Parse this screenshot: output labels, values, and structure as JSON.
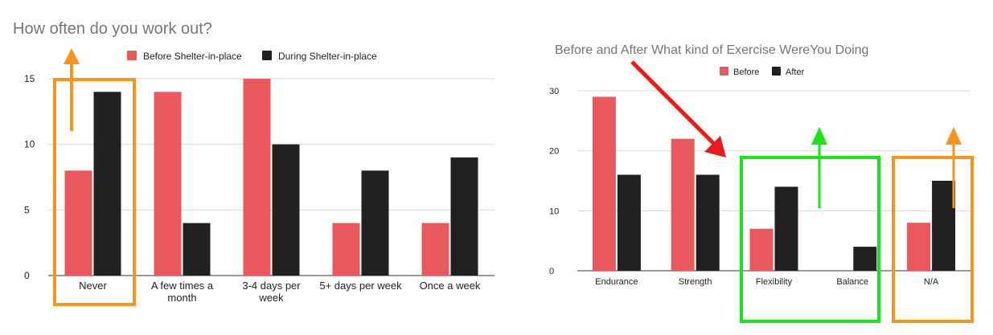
{
  "colors": {
    "before": "#e8585c",
    "after": "#212121",
    "grid": "#d9d9d9",
    "highlight_orange": "#f7941d",
    "highlight_green": "#19e619",
    "arrow_red": "#e81c1c"
  },
  "chart_data": [
    {
      "type": "bar",
      "title": "How often do you work out?",
      "categories": [
        [
          "Never"
        ],
        [
          "A few times a",
          "month"
        ],
        [
          "3-4 days per",
          "week"
        ],
        [
          "5+ days per week"
        ],
        [
          "Once a week"
        ]
      ],
      "series": [
        {
          "name": "Before Shelter-in-place",
          "values": [
            8,
            14,
            15,
            4,
            4
          ]
        },
        {
          "name": "During Shelter-in-place",
          "values": [
            14,
            4,
            10,
            8,
            9
          ]
        }
      ],
      "yticks": [
        "0",
        "5",
        "10",
        "15"
      ],
      "ylim": [
        0,
        15
      ],
      "grid": true,
      "legend": "top"
    },
    {
      "type": "bar",
      "title": "Before and After What kind of Exercise WereYou Doing",
      "categories": [
        [
          "Endurance"
        ],
        [
          "Strength"
        ],
        [
          "Flexibility"
        ],
        [
          "Balance"
        ],
        [
          "N/A"
        ]
      ],
      "series": [
        {
          "name": "Before",
          "values": [
            29,
            22,
            7,
            0,
            8
          ]
        },
        {
          "name": "After",
          "values": [
            16,
            16,
            14,
            4,
            15
          ]
        }
      ],
      "yticks": [
        "0",
        "10",
        "20",
        "30"
      ],
      "ylim": [
        0,
        30
      ],
      "grid": true,
      "legend": "top"
    }
  ],
  "annotations": {
    "chart1_highlight": "Never",
    "chart2_highlight_green": [
      "Flexibility",
      "Balance"
    ],
    "chart2_highlight_orange": "N/A"
  }
}
